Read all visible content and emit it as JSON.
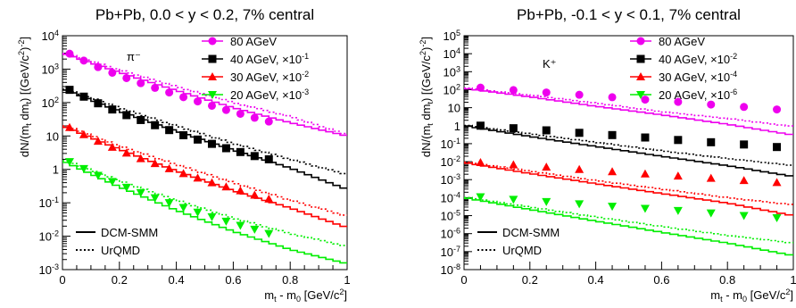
{
  "chart_data": [
    {
      "type": "scatter",
      "title": "Pb+Pb, 0.0 < y < 0.2, 7% central",
      "particle": "π⁻",
      "xlabel": "m_t - m_0 [GeV/c^2]",
      "ylabel": "dN/(m_t dm_t) [(GeV/c^2)^-2]",
      "xlim": [
        0,
        1
      ],
      "ylim": [
        0.001,
        10000
      ],
      "yscale": "log",
      "xticks": [
        "0",
        "0.2",
        "0.4",
        "0.6",
        "0.8",
        "1"
      ],
      "yticks": [
        "10^-3",
        "10^-2",
        "10^-1",
        "1",
        "10",
        "10^2",
        "10^3",
        "10^4"
      ],
      "legend_position": "top-right",
      "line_legend": [
        {
          "label": "DCM-SMM",
          "style": "solid"
        },
        {
          "label": "UrQMD",
          "style": "dotted"
        }
      ],
      "series": [
        {
          "name": "80 AGeV",
          "scale": "",
          "marker": "circle",
          "color": "#ee00ee",
          "x": [
            0.025,
            0.075,
            0.125,
            0.175,
            0.225,
            0.275,
            0.325,
            0.375,
            0.425,
            0.475,
            0.525,
            0.575,
            0.625,
            0.675,
            0.725
          ],
          "y": [
            2900,
            1800,
            1150,
            780,
            540,
            380,
            275,
            200,
            145,
            108,
            80,
            60,
            46,
            35,
            27
          ],
          "dcm": [
            3000,
            800,
            230,
            70,
            25,
            10
          ],
          "urqmd": [
            3200,
            950,
            300,
            100,
            38,
            11
          ]
        },
        {
          "name": "40 AGeV",
          "scale": "10^-1",
          "marker": "square",
          "color": "#000000",
          "x": [
            0.025,
            0.075,
            0.125,
            0.175,
            0.225,
            0.275,
            0.325,
            0.375,
            0.425,
            0.475,
            0.525,
            0.575,
            0.625,
            0.675,
            0.725
          ],
          "y": [
            240,
            150,
            95,
            62,
            42,
            30,
            21,
            15,
            10.5,
            7.8,
            5.8,
            4.3,
            3.3,
            2.5,
            2.0
          ],
          "dcm": [
            260,
            55,
            14,
            3.8,
            1.1,
            0.25
          ],
          "urqmd": [
            270,
            70,
            20,
            6,
            2,
            0.7
          ]
        },
        {
          "name": "30 AGeV",
          "scale": "10^-2",
          "marker": "triangle-up",
          "color": "#ff0000",
          "x": [
            0.025,
            0.075,
            0.125,
            0.175,
            0.225,
            0.275,
            0.325,
            0.375,
            0.425,
            0.475,
            0.525,
            0.575,
            0.625,
            0.675,
            0.725
          ],
          "y": [
            18,
            11,
            7,
            4.6,
            3.1,
            2.1,
            1.5,
            1.05,
            0.75,
            0.55,
            0.4,
            0.3,
            0.23,
            0.17,
            0.13
          ],
          "dcm": [
            20,
            4,
            0.9,
            0.23,
            0.07,
            0.018
          ],
          "urqmd": [
            22,
            5,
            1.4,
            0.4,
            0.12,
            0.04
          ]
        },
        {
          "name": "20 AGeV",
          "scale": "10^-3",
          "marker": "triangle-down",
          "color": "#00ee00",
          "x": [
            0.025,
            0.075,
            0.125,
            0.175,
            0.225,
            0.275,
            0.325,
            0.375,
            0.425,
            0.475,
            0.525,
            0.575,
            0.625,
            0.675,
            0.725
          ],
          "y": [
            1.7,
            1.05,
            0.66,
            0.43,
            0.29,
            0.2,
            0.14,
            0.1,
            0.072,
            0.052,
            0.038,
            0.028,
            0.021,
            0.016,
            0.012
          ],
          "dcm": [
            1.8,
            0.3,
            0.06,
            0.014,
            0.004,
            0.0015
          ],
          "urqmd": [
            2.0,
            0.45,
            0.12,
            0.035,
            0.012,
            0.005
          ]
        }
      ]
    },
    {
      "type": "scatter",
      "title": "Pb+Pb, -0.1 < y < 0.1, 7% central",
      "particle": "K⁺",
      "xlabel": "m_t - m_0 [GeV/c^2]",
      "ylabel": "dN/(m_t dm_t) [(GeV/c^2)^-2]",
      "xlim": [
        0,
        1
      ],
      "ylim": [
        1e-08,
        100000
      ],
      "yscale": "log",
      "xticks": [
        "0",
        "0.2",
        "0.4",
        "0.6",
        "0.8",
        "1"
      ],
      "yticks": [
        "10^-8",
        "10^-7",
        "10^-6",
        "10^-5",
        "10^-4",
        "10^-3",
        "10^-2",
        "10^-1",
        "1",
        "10",
        "10^2",
        "10^3",
        "10^4",
        "10^5"
      ],
      "legend_position": "top-right",
      "line_legend": [
        {
          "label": "DCM-SMM",
          "style": "solid"
        },
        {
          "label": "UrQMD",
          "style": "dotted"
        }
      ],
      "series": [
        {
          "name": "80 AGeV",
          "scale": "",
          "marker": "circle",
          "color": "#ee00ee",
          "x": [
            0.05,
            0.15,
            0.25,
            0.35,
            0.45,
            0.55,
            0.65,
            0.75,
            0.85,
            0.95
          ],
          "y": [
            130,
            95,
            70,
            52,
            38,
            28,
            21,
            15,
            11,
            8
          ],
          "dcm": [
            120,
            40,
            12,
            4,
            1.2,
            0.3
          ],
          "urqmd": [
            130,
            50,
            18,
            6,
            2.5,
            0.9
          ]
        },
        {
          "name": "40 AGeV",
          "scale": "10^-2",
          "marker": "square",
          "color": "#000000",
          "x": [
            0.05,
            0.15,
            0.25,
            0.35,
            0.45,
            0.55,
            0.65,
            0.75,
            0.85,
            0.95
          ],
          "y": [
            1.0,
            0.72,
            0.55,
            0.4,
            0.3,
            0.22,
            0.16,
            0.12,
            0.09,
            0.065
          ],
          "dcm": [
            1.0,
            0.25,
            0.07,
            0.02,
            0.006,
            0.0015
          ],
          "urqmd": [
            1.1,
            0.35,
            0.12,
            0.04,
            0.015,
            0.006
          ]
        },
        {
          "name": "30 AGeV",
          "scale": "10^-4",
          "marker": "triangle-up",
          "color": "#ff0000",
          "x": [
            0.05,
            0.15,
            0.25,
            0.35,
            0.45,
            0.55,
            0.65,
            0.75,
            0.85,
            0.95
          ],
          "y": [
            0.009,
            0.0068,
            0.005,
            0.0037,
            0.0028,
            0.0021,
            0.0016,
            0.0012,
            0.0009,
            0.0007
          ],
          "dcm": [
            0.009,
            0.0022,
            0.0006,
            0.00017,
            5e-05,
            1e-05
          ],
          "urqmd": [
            0.01,
            0.003,
            0.0009,
            0.0003,
            0.0001,
            4e-05
          ]
        },
        {
          "name": "20 AGeV",
          "scale": "10^-6",
          "marker": "triangle-down",
          "color": "#00ee00",
          "x": [
            0.05,
            0.15,
            0.25,
            0.35,
            0.45,
            0.55,
            0.65,
            0.75,
            0.85,
            0.95
          ],
          "y": [
            0.00011,
            8e-05,
            6e-05,
            4.5e-05,
            3.3e-05,
            2.5e-05,
            1.9e-05,
            1.4e-05,
            1e-05,
            7.5e-06
          ],
          "dcm": [
            0.0001,
            2.2e-05,
            5e-06,
            1.2e-06,
            3e-07,
            6e-08
          ],
          "urqmd": [
            0.00011,
            3e-05,
            8.5e-06,
            2.5e-06,
            8e-07,
            3e-07
          ]
        }
      ]
    }
  ]
}
